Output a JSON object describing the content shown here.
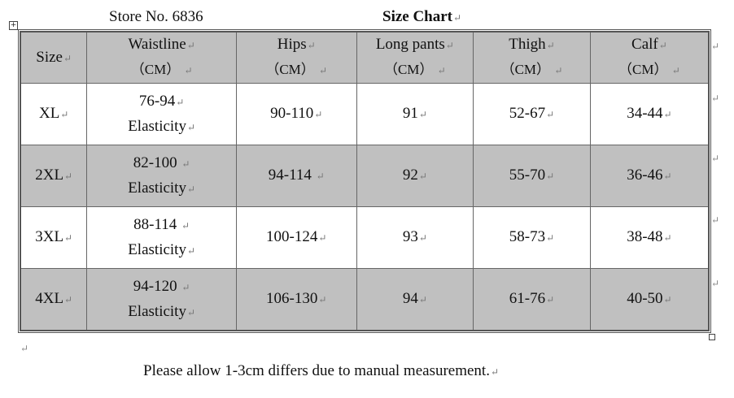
{
  "header": {
    "store": "Store No. 6836",
    "title": "Size Chart"
  },
  "para_mark": "↵",
  "table": {
    "headers": [
      {
        "label": "Size",
        "unit": ""
      },
      {
        "label": "Waistline",
        "unit": "（CM）"
      },
      {
        "label": "Hips",
        "unit": "（CM）"
      },
      {
        "label": "Long pants",
        "unit": "（CM）"
      },
      {
        "label": "Thigh",
        "unit": "（CM）"
      },
      {
        "label": "Calf",
        "unit": "（CM）"
      }
    ],
    "rows": [
      {
        "size": "XL",
        "waist": "76-94",
        "waist_note": "Elasticity",
        "hips": "90-110",
        "long_pants": "91",
        "thigh": "52-67",
        "calf": "34-44"
      },
      {
        "size": "2XL",
        "waist": "82-100",
        "waist_note": "Elasticity",
        "hips": "94-114",
        "long_pants": "92",
        "thigh": "55-70",
        "calf": "36-46"
      },
      {
        "size": "3XL",
        "waist": "88-114",
        "waist_note": "Elasticity",
        "hips": "100-124",
        "long_pants": "93",
        "thigh": "58-73",
        "calf": "38-48"
      },
      {
        "size": "4XL",
        "waist": "94-120",
        "waist_note": "Elasticity",
        "hips": "106-130",
        "long_pants": "94",
        "thigh": "61-76",
        "calf": "40-50"
      }
    ]
  },
  "note": "Please allow 1-3cm differs due to manual measurement.",
  "colors": {
    "shade": "#c0c0c0",
    "white": "#ffffff"
  }
}
